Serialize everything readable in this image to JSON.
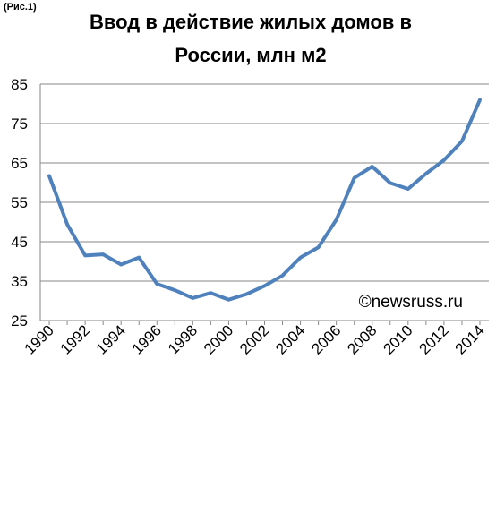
{
  "figure_label": "(Рис.1)",
  "chart_data": {
    "type": "line",
    "title": "Ввод в действие жилых домов в России, млн м2",
    "watermark": "©newsruss.ru",
    "xlabel": "",
    "ylabel": "",
    "ylim": [
      25,
      85
    ],
    "yticks": [
      25,
      35,
      45,
      55,
      65,
      75,
      85
    ],
    "xticks": [
      "1990",
      "1992",
      "1994",
      "1996",
      "1998",
      "2000",
      "2002",
      "2004",
      "2006",
      "2008",
      "2010",
      "2012",
      "2014"
    ],
    "grid": true,
    "line_color": "#4F81BD",
    "x": [
      1990,
      1991,
      1992,
      1993,
      1994,
      1995,
      1996,
      1997,
      1998,
      1999,
      2000,
      2001,
      2002,
      2003,
      2004,
      2005,
      2006,
      2007,
      2008,
      2009,
      2010,
      2011,
      2012,
      2013,
      2014
    ],
    "values": [
      61.7,
      49.4,
      41.5,
      41.8,
      39.2,
      41.0,
      34.3,
      32.7,
      30.7,
      32.0,
      30.3,
      31.7,
      33.8,
      36.4,
      41.0,
      43.6,
      50.6,
      61.2,
      64.1,
      59.9,
      58.4,
      62.3,
      65.7,
      70.5,
      81.0
    ]
  }
}
